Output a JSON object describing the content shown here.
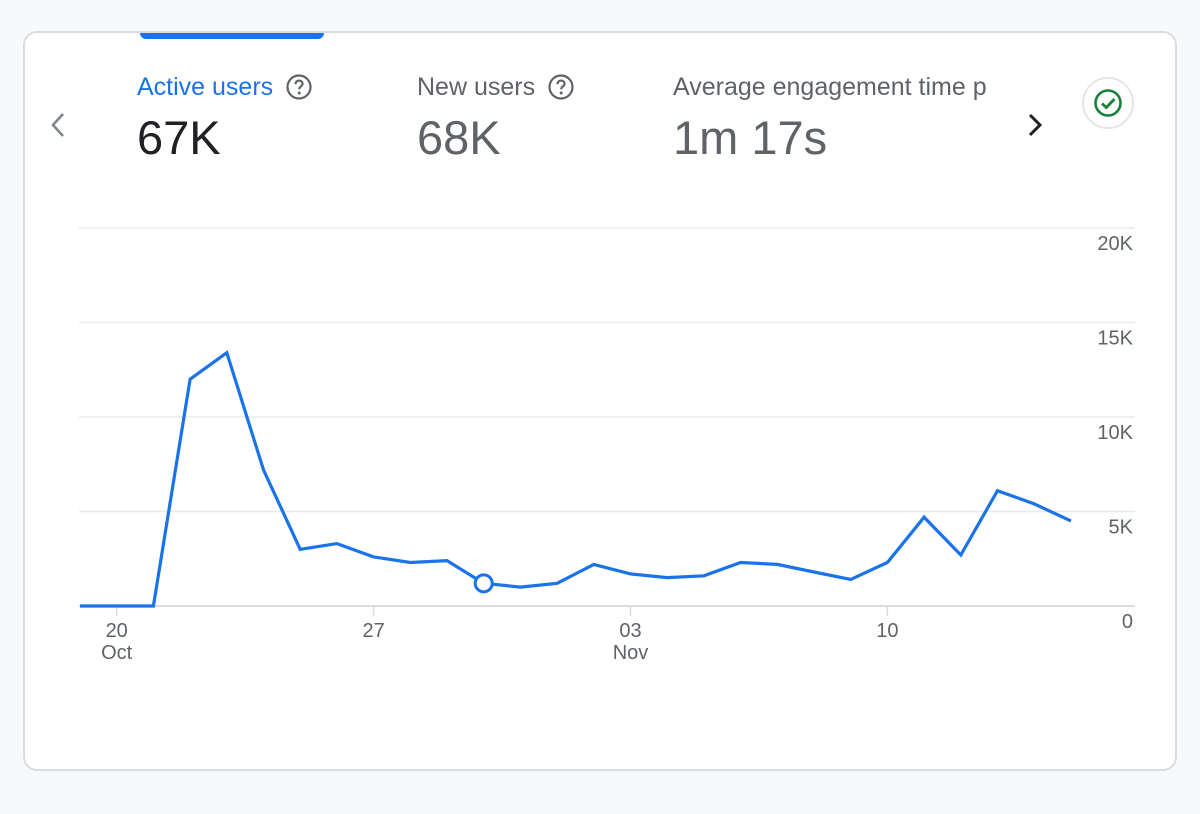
{
  "metrics": [
    {
      "label": "Active users",
      "value": "67K"
    },
    {
      "label": "New users",
      "value": "68K"
    },
    {
      "label": "Average engagement time p",
      "value": "1m 17s"
    }
  ],
  "colors": {
    "accent": "#1a73e8",
    "line": "#1a73e8",
    "status_green": "#188038"
  },
  "icons": {
    "prev": "chevron-left-icon",
    "next": "chevron-right-icon",
    "status": "check-circle-icon",
    "help": "help-icon"
  },
  "chart_data": {
    "type": "line",
    "x": [
      "Oct 19",
      "Oct 20",
      "Oct 21",
      "Oct 22",
      "Oct 23",
      "Oct 24",
      "Oct 25",
      "Oct 26",
      "Oct 27",
      "Oct 28",
      "Oct 29",
      "Oct 30",
      "Oct 31",
      "Nov 01",
      "Nov 02",
      "Nov 03",
      "Nov 04",
      "Nov 05",
      "Nov 06",
      "Nov 07",
      "Nov 08",
      "Nov 09",
      "Nov 10",
      "Nov 11",
      "Nov 12",
      "Nov 13",
      "Nov 14",
      "Nov 15"
    ],
    "series": [
      {
        "values": [
          0,
          0,
          0,
          12000,
          13400,
          7200,
          3000,
          3300,
          2600,
          2300,
          2400,
          1200,
          1000,
          1200,
          2200,
          1700,
          1500,
          1600,
          2300,
          2200,
          1800,
          1400,
          2300,
          4700,
          2700,
          6100,
          5400,
          4500
        ]
      }
    ],
    "highlight_index": 11,
    "y_ticks": [
      "20K",
      "15K",
      "10K",
      "5K",
      "0"
    ],
    "ylim": [
      0,
      20000
    ],
    "x_ticks": [
      {
        "day": "20",
        "month": "Oct",
        "index": 1
      },
      {
        "day": "27",
        "month": "",
        "index": 8
      },
      {
        "day": "03",
        "month": "Nov",
        "index": 15
      },
      {
        "day": "10",
        "month": "",
        "index": 22
      }
    ],
    "grid": true
  }
}
